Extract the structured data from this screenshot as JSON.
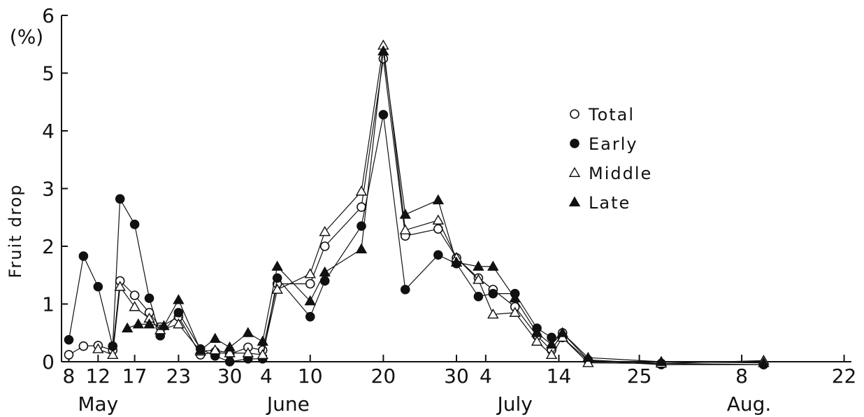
{
  "chart_data": {
    "type": "line",
    "ylabel": "Fruit  drop",
    "yunit": "(%)",
    "ylim": [
      0,
      6
    ],
    "yticks": [
      "0",
      "1",
      "2",
      "3",
      "4",
      "5",
      "6"
    ],
    "xticks": [
      {
        "label": "8",
        "day": 8
      },
      {
        "label": "12",
        "day": 12
      },
      {
        "label": "17",
        "day": 17
      },
      {
        "label": "23",
        "day": 23
      },
      {
        "label": "30",
        "day": 30
      },
      {
        "label": "4",
        "day": 35
      },
      {
        "label": "10",
        "day": 41
      },
      {
        "label": "20",
        "day": 51
      },
      {
        "label": "30",
        "day": 61
      },
      {
        "label": "4",
        "day": 65
      },
      {
        "label": "14",
        "day": 75
      },
      {
        "label": "25",
        "day": 86
      },
      {
        "label": "8",
        "day": 100
      },
      {
        "label": "22",
        "day": 114
      }
    ],
    "months": [
      {
        "label": "May",
        "day": 12
      },
      {
        "label": "June",
        "day": 38
      },
      {
        "label": "July",
        "day": 69
      },
      {
        "label": "Aug.",
        "day": 101
      }
    ],
    "xlim": [
      7,
      115
    ],
    "legend": [
      "Total",
      "Early",
      "Middle",
      "Late"
    ],
    "series": [
      {
        "name": "Total",
        "marker": "circle-open",
        "points": [
          [
            8,
            0.12
          ],
          [
            10,
            0.27
          ],
          [
            12,
            0.28
          ],
          [
            14,
            0.2
          ],
          [
            15,
            1.4
          ],
          [
            17,
            1.15
          ],
          [
            19,
            0.85
          ],
          [
            20.5,
            0.6
          ],
          [
            23,
            0.78
          ],
          [
            26,
            0.12
          ],
          [
            28,
            0.17
          ],
          [
            30,
            0.13
          ],
          [
            32.5,
            0.25
          ],
          [
            34.5,
            0.2
          ],
          [
            36.5,
            1.35
          ],
          [
            41,
            1.35
          ],
          [
            43,
            2.0
          ],
          [
            48,
            2.68
          ],
          [
            51,
            5.25
          ],
          [
            54,
            2.18
          ],
          [
            58.5,
            2.3
          ],
          [
            61,
            1.8
          ],
          [
            64,
            1.45
          ],
          [
            66,
            1.25
          ],
          [
            69,
            0.95
          ],
          [
            72,
            0.45
          ],
          [
            74,
            0.2
          ],
          [
            75.5,
            0.5
          ],
          [
            79,
            0.03
          ],
          [
            89,
            -0.03
          ],
          [
            103,
            -0.05
          ]
        ]
      },
      {
        "name": "Early",
        "marker": "circle-filled",
        "points": [
          [
            8,
            0.38
          ],
          [
            10,
            1.83
          ],
          [
            12,
            1.3
          ],
          [
            14,
            0.27
          ],
          [
            15,
            2.82
          ],
          [
            17,
            2.38
          ],
          [
            19,
            1.1
          ],
          [
            20.5,
            0.45
          ],
          [
            23,
            0.85
          ],
          [
            26,
            0.22
          ],
          [
            28,
            0.1
          ],
          [
            30,
            0.0
          ],
          [
            32.5,
            0.05
          ],
          [
            34.5,
            0.05
          ],
          [
            36.5,
            1.45
          ],
          [
            41,
            0.78
          ],
          [
            43,
            1.4
          ],
          [
            48,
            2.35
          ],
          [
            51,
            4.28
          ],
          [
            54,
            1.25
          ],
          [
            58.5,
            1.85
          ],
          [
            61,
            1.7
          ],
          [
            64,
            1.13
          ],
          [
            66,
            1.18
          ],
          [
            69,
            1.18
          ],
          [
            72,
            0.58
          ],
          [
            74,
            0.42
          ],
          [
            75.5,
            0.42
          ],
          [
            79,
            0.02
          ],
          [
            89,
            -0.05
          ],
          [
            103,
            -0.05
          ]
        ]
      },
      {
        "name": "Middle",
        "marker": "triangle-open",
        "points": [
          [
            12,
            0.22
          ],
          [
            14,
            0.12
          ],
          [
            15,
            1.3
          ],
          [
            17,
            0.95
          ],
          [
            19,
            0.75
          ],
          [
            20.5,
            0.55
          ],
          [
            23,
            0.65
          ],
          [
            26,
            0.18
          ],
          [
            28,
            0.2
          ],
          [
            30,
            0.15
          ],
          [
            32.5,
            0.15
          ],
          [
            34.5,
            0.12
          ],
          [
            36.5,
            1.25
          ],
          [
            41,
            1.52
          ],
          [
            43,
            2.25
          ],
          [
            48,
            2.95
          ],
          [
            51,
            5.48
          ],
          [
            54,
            2.28
          ],
          [
            58.5,
            2.45
          ],
          [
            61,
            1.8
          ],
          [
            64,
            1.42
          ],
          [
            66,
            0.82
          ],
          [
            69,
            0.85
          ],
          [
            72,
            0.35
          ],
          [
            74,
            0.12
          ],
          [
            75.5,
            0.42
          ],
          [
            79,
            -0.02
          ],
          [
            89,
            -0.03
          ],
          [
            103,
            0.02
          ]
        ]
      },
      {
        "name": "Late",
        "marker": "triangle-filled",
        "points": [
          [
            16,
            0.58
          ],
          [
            17.5,
            0.65
          ],
          [
            19,
            0.65
          ],
          [
            21,
            0.62
          ],
          [
            23,
            1.07
          ],
          [
            26,
            0.2
          ],
          [
            28,
            0.4
          ],
          [
            30,
            0.25
          ],
          [
            32.5,
            0.5
          ],
          [
            34.5,
            0.35
          ],
          [
            36.5,
            1.65
          ],
          [
            41,
            1.05
          ],
          [
            43,
            1.55
          ],
          [
            48,
            1.95
          ],
          [
            51,
            5.38
          ],
          [
            54,
            2.55
          ],
          [
            58.5,
            2.8
          ],
          [
            61,
            1.72
          ],
          [
            64,
            1.65
          ],
          [
            66,
            1.65
          ],
          [
            69,
            1.1
          ],
          [
            72,
            0.5
          ],
          [
            74,
            0.3
          ],
          [
            75.5,
            0.5
          ],
          [
            79,
            0.07
          ],
          [
            89,
            0.0
          ],
          [
            103,
            -0.02
          ]
        ]
      }
    ]
  }
}
